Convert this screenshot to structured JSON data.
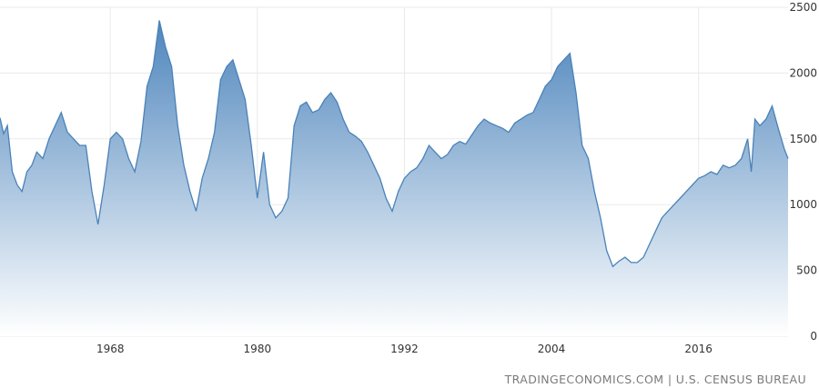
{
  "chart_data": {
    "type": "area",
    "title": "",
    "xlabel": "",
    "ylabel": "",
    "x_ticks": [
      "1968",
      "1980",
      "1992",
      "2004",
      "2016"
    ],
    "y_ticks": [
      "0",
      "500",
      "1000",
      "1500",
      "2000",
      "2500"
    ],
    "ylim": [
      0,
      2500
    ],
    "xlim": [
      1959.0,
      2023.3
    ],
    "grid": true,
    "y_axis_position": "right",
    "line_color": "#4a82b8",
    "fill_top_color": "#4f86bd",
    "fill_bottom_color": "#ffffff",
    "series": [
      {
        "x": [
          1959.0,
          1959.3,
          1959.6,
          1960.0,
          1960.4,
          1960.8,
          1961.2,
          1961.6,
          1962.0,
          1962.5,
          1963.0,
          1963.5,
          1964.0,
          1964.5,
          1965.0,
          1965.5,
          1966.0,
          1966.5,
          1967.0,
          1967.5,
          1968.0,
          1968.5,
          1969.0,
          1969.5,
          1970.0,
          1970.5,
          1971.0,
          1971.5,
          1972.0,
          1972.5,
          1973.0,
          1973.5,
          1974.0,
          1974.5,
          1975.0,
          1975.5,
          1976.0,
          1976.5,
          1977.0,
          1977.5,
          1978.0,
          1978.5,
          1979.0,
          1979.5,
          1980.0,
          1980.5,
          1981.0,
          1981.5,
          1982.0,
          1982.5,
          1983.0,
          1983.5,
          1984.0,
          1984.5,
          1985.0,
          1985.5,
          1986.0,
          1986.5,
          1987.0,
          1987.5,
          1988.0,
          1988.5,
          1989.0,
          1989.5,
          1990.0,
          1990.5,
          1991.0,
          1991.5,
          1992.0,
          1992.5,
          1993.0,
          1993.5,
          1994.0,
          1994.5,
          1995.0,
          1995.5,
          1996.0,
          1996.5,
          1997.0,
          1997.5,
          1998.0,
          1998.5,
          1999.0,
          1999.5,
          2000.0,
          2000.5,
          2001.0,
          2001.5,
          2002.0,
          2002.5,
          2003.0,
          2003.5,
          2004.0,
          2004.5,
          2005.0,
          2005.5,
          2006.0,
          2006.5,
          2007.0,
          2007.5,
          2008.0,
          2008.5,
          2009.0,
          2009.5,
          2010.0,
          2010.5,
          2011.0,
          2011.5,
          2012.0,
          2012.5,
          2013.0,
          2013.5,
          2014.0,
          2014.5,
          2015.0,
          2015.5,
          2016.0,
          2016.5,
          2017.0,
          2017.5,
          2018.0,
          2018.5,
          2019.0,
          2019.5,
          2020.0,
          2020.3,
          2020.6,
          2021.0,
          2021.5,
          2022.0,
          2022.5,
          2023.0,
          2023.3
        ],
        "values": [
          1660,
          1540,
          1600,
          1250,
          1150,
          1100,
          1250,
          1300,
          1400,
          1350,
          1500,
          1600,
          1700,
          1550,
          1500,
          1450,
          1450,
          1100,
          850,
          1150,
          1500,
          1550,
          1500,
          1350,
          1250,
          1480,
          1900,
          2050,
          2400,
          2200,
          2050,
          1600,
          1300,
          1100,
          950,
          1200,
          1350,
          1550,
          1950,
          2050,
          2100,
          1950,
          1800,
          1450,
          1050,
          1400,
          1000,
          900,
          950,
          1050,
          1600,
          1750,
          1780,
          1700,
          1720,
          1800,
          1850,
          1780,
          1650,
          1550,
          1520,
          1480,
          1400,
          1300,
          1200,
          1050,
          950,
          1100,
          1200,
          1250,
          1280,
          1350,
          1450,
          1400,
          1350,
          1380,
          1450,
          1480,
          1460,
          1530,
          1600,
          1650,
          1620,
          1600,
          1580,
          1550,
          1620,
          1650,
          1680,
          1700,
          1800,
          1900,
          1950,
          2050,
          2100,
          2150,
          1850,
          1450,
          1350,
          1100,
          900,
          650,
          530,
          570,
          600,
          560,
          560,
          600,
          700,
          800,
          900,
          950,
          1000,
          1050,
          1100,
          1150,
          1200,
          1220,
          1250,
          1230,
          1300,
          1280,
          1300,
          1350,
          1500,
          1250,
          1650,
          1600,
          1650,
          1750,
          1580,
          1420,
          1350
        ]
      }
    ]
  },
  "source": "TRADINGECONOMICS.COM | U.S. CENSUS BUREAU"
}
